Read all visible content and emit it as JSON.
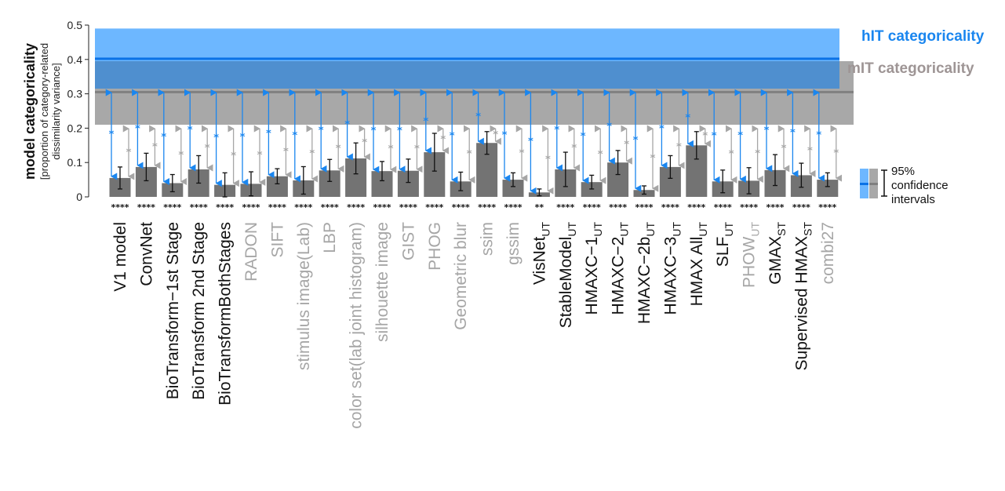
{
  "colors": {
    "bar": "#737373",
    "black_label": "#111111",
    "gray_label": "#a6a6a6",
    "hit_band": "#6db7ff",
    "hit_line": "#0a72e6",
    "mit_band": "#a8a8a8",
    "mit_line": "#808080",
    "overlap": "#4f8fcf",
    "hit_text": "#1a86ef",
    "mit_text": "#9e9595"
  },
  "chart_data": {
    "type": "bar",
    "ylabel": "model categoricality",
    "ylabel_sub": [
      "[proportion of category-related",
      "dissimilarity variance]"
    ],
    "yticks": [
      "0",
      "0.1",
      "0.2",
      "0.3",
      "0.4",
      "0.5"
    ],
    "ylim": [
      0,
      0.5
    ],
    "grid": false,
    "hit": {
      "label": "hIT categoricality",
      "value": 0.402,
      "ci": [
        0.315,
        0.49
      ]
    },
    "mit": {
      "label": "mIT categoricality",
      "value": 0.305,
      "ci": [
        0.21,
        0.395
      ]
    },
    "legend": {
      "lines": [
        "95%",
        "confidence",
        "intervals"
      ],
      "position": "right"
    },
    "categories": [
      {
        "main": "V1 model",
        "sub": "",
        "color": "black",
        "value": 0.055,
        "err": 0.032,
        "stars": "****"
      },
      {
        "main": "ConvNet",
        "sub": "",
        "color": "black",
        "value": 0.087,
        "err": 0.04,
        "stars": "****"
      },
      {
        "main": "BioTransform−1st Stage",
        "sub": "",
        "color": "black",
        "value": 0.04,
        "err": 0.025,
        "stars": "****"
      },
      {
        "main": "BioTransform  2nd Stage",
        "sub": "",
        "color": "black",
        "value": 0.08,
        "err": 0.04,
        "stars": "****"
      },
      {
        "main": "BioTransformBothStages",
        "sub": "",
        "color": "black",
        "value": 0.035,
        "err": 0.035,
        "stars": "****"
      },
      {
        "main": "RADON",
        "sub": "",
        "color": "gray",
        "value": 0.038,
        "err": 0.035,
        "stars": "****"
      },
      {
        "main": "SIFT",
        "sub": "",
        "color": "gray",
        "value": 0.06,
        "err": 0.022,
        "stars": "****"
      },
      {
        "main": "stimulus image(Lab)",
        "sub": "",
        "color": "gray",
        "value": 0.048,
        "err": 0.04,
        "stars": "****"
      },
      {
        "main": "LBP",
        "sub": "",
        "color": "gray",
        "value": 0.077,
        "err": 0.032,
        "stars": "****"
      },
      {
        "main": "color set(lab joint histogram)",
        "sub": "",
        "color": "gray",
        "value": 0.112,
        "err": 0.045,
        "stars": "****"
      },
      {
        "main": "silhouette image",
        "sub": "",
        "color": "gray",
        "value": 0.075,
        "err": 0.028,
        "stars": "****"
      },
      {
        "main": "GIST",
        "sub": "",
        "color": "gray",
        "value": 0.076,
        "err": 0.034,
        "stars": "****"
      },
      {
        "main": "PHOG",
        "sub": "",
        "color": "gray",
        "value": 0.13,
        "err": 0.055,
        "stars": "****"
      },
      {
        "main": "Geometric blur",
        "sub": "",
        "color": "gray",
        "value": 0.045,
        "err": 0.027,
        "stars": "****"
      },
      {
        "main": "ssim",
        "sub": "",
        "color": "gray",
        "value": 0.157,
        "err": 0.033,
        "stars": "****"
      },
      {
        "main": "gssim",
        "sub": "",
        "color": "gray",
        "value": 0.05,
        "err": 0.02,
        "stars": "****"
      },
      {
        "main": "VisNet",
        "sub": "UT",
        "color": "black",
        "value": 0.013,
        "err": 0.01,
        "stars": "**"
      },
      {
        "main": "StableModel",
        "sub": "UT",
        "color": "black",
        "value": 0.08,
        "err": 0.05,
        "stars": "****"
      },
      {
        "main": "HMAXC−1",
        "sub": "UT",
        "color": "black",
        "value": 0.043,
        "err": 0.02,
        "stars": "****"
      },
      {
        "main": "HMAXC−2",
        "sub": "UT",
        "color": "black",
        "value": 0.1,
        "err": 0.035,
        "stars": "****"
      },
      {
        "main": "HMAXC−2b",
        "sub": "UT",
        "color": "black",
        "value": 0.02,
        "err": 0.012,
        "stars": "****"
      },
      {
        "main": "HMAXC−3",
        "sub": "UT",
        "color": "black",
        "value": 0.087,
        "err": 0.033,
        "stars": "****"
      },
      {
        "main": "HMAX All",
        "sub": "UT",
        "color": "black",
        "value": 0.15,
        "err": 0.04,
        "stars": "****"
      },
      {
        "main": "SLF",
        "sub": "UT",
        "color": "black",
        "value": 0.045,
        "err": 0.033,
        "stars": "****"
      },
      {
        "main": "PHOW",
        "sub": "UT",
        "color": "gray",
        "value": 0.047,
        "err": 0.038,
        "stars": "****"
      },
      {
        "main": "GMAX",
        "sub": "ST",
        "color": "black",
        "value": 0.078,
        "err": 0.045,
        "stars": "****"
      },
      {
        "main": "Supervised HMAX",
        "sub": "ST",
        "color": "black",
        "value": 0.063,
        "err": 0.035,
        "stars": "****"
      },
      {
        "main": "combi27",
        "sub": "",
        "color": "gray",
        "value": 0.05,
        "err": 0.02,
        "stars": "****"
      }
    ]
  }
}
